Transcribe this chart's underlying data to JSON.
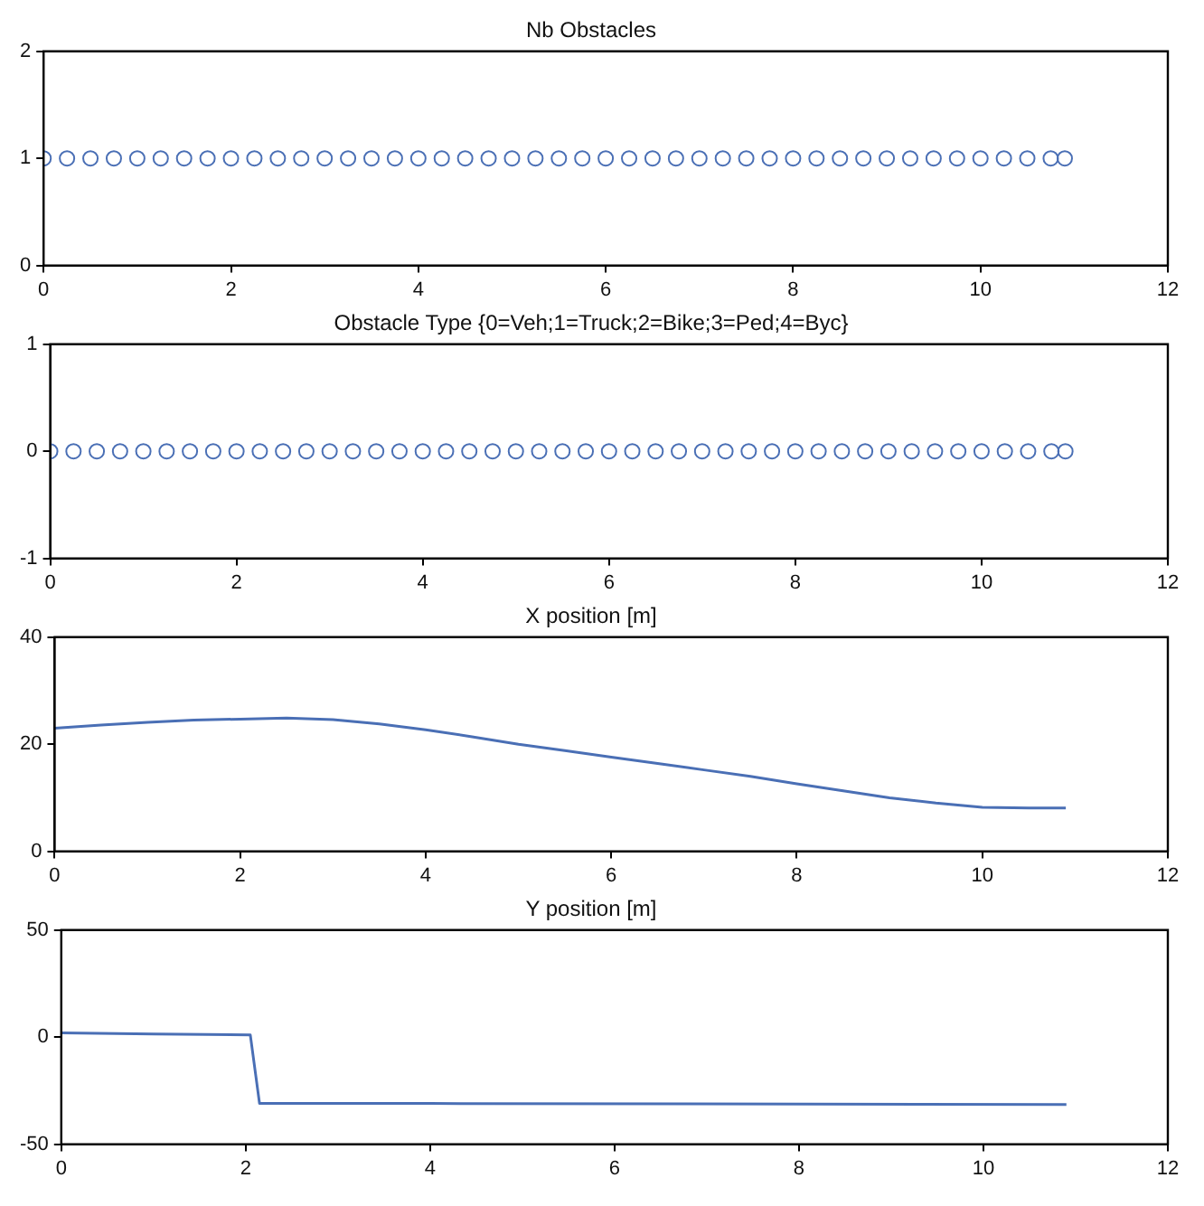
{
  "chart_data": [
    {
      "type": "scatter",
      "title": "Nb Obstacles",
      "marker": "circle",
      "grid": false,
      "legend": false,
      "xlim": [
        0,
        12
      ],
      "xticks": [
        0,
        2,
        4,
        6,
        8,
        10,
        12
      ],
      "ylim": [
        0,
        2
      ],
      "yticks": [
        0,
        1,
        2
      ],
      "series": [
        {
          "color": "#4a6fb5",
          "x": [
            0,
            0.25,
            0.5,
            0.75,
            1,
            1.25,
            1.5,
            1.75,
            2,
            2.25,
            2.5,
            2.75,
            3,
            3.25,
            3.5,
            3.75,
            4,
            4.25,
            4.5,
            4.75,
            5,
            5.25,
            5.5,
            5.75,
            6,
            6.25,
            6.5,
            6.75,
            7,
            7.25,
            7.5,
            7.75,
            8,
            8.25,
            8.5,
            8.75,
            9,
            9.25,
            9.5,
            9.75,
            10,
            10.25,
            10.5,
            10.75,
            10.9
          ],
          "values": [
            1,
            1,
            1,
            1,
            1,
            1,
            1,
            1,
            1,
            1,
            1,
            1,
            1,
            1,
            1,
            1,
            1,
            1,
            1,
            1,
            1,
            1,
            1,
            1,
            1,
            1,
            1,
            1,
            1,
            1,
            1,
            1,
            1,
            1,
            1,
            1,
            1,
            1,
            1,
            1,
            1,
            1,
            1,
            1,
            1
          ]
        }
      ]
    },
    {
      "type": "scatter",
      "title": "Obstacle Type {0=Veh;1=Truck;2=Bike;3=Ped;4=Byc}",
      "marker": "circle",
      "grid": false,
      "legend": false,
      "xlim": [
        0,
        12
      ],
      "xticks": [
        0,
        2,
        4,
        6,
        8,
        10,
        12
      ],
      "ylim": [
        -1,
        1
      ],
      "yticks": [
        -1,
        0,
        1
      ],
      "series": [
        {
          "color": "#4a6fb5",
          "x": [
            0,
            0.25,
            0.5,
            0.75,
            1,
            1.25,
            1.5,
            1.75,
            2,
            2.25,
            2.5,
            2.75,
            3,
            3.25,
            3.5,
            3.75,
            4,
            4.25,
            4.5,
            4.75,
            5,
            5.25,
            5.5,
            5.75,
            6,
            6.25,
            6.5,
            6.75,
            7,
            7.25,
            7.5,
            7.75,
            8,
            8.25,
            8.5,
            8.75,
            9,
            9.25,
            9.5,
            9.75,
            10,
            10.25,
            10.5,
            10.75,
            10.9
          ],
          "values": [
            0,
            0,
            0,
            0,
            0,
            0,
            0,
            0,
            0,
            0,
            0,
            0,
            0,
            0,
            0,
            0,
            0,
            0,
            0,
            0,
            0,
            0,
            0,
            0,
            0,
            0,
            0,
            0,
            0,
            0,
            0,
            0,
            0,
            0,
            0,
            0,
            0,
            0,
            0,
            0,
            0,
            0,
            0,
            0,
            0
          ]
        }
      ]
    },
    {
      "type": "line",
      "title": "X position [m]",
      "marker": "none",
      "grid": false,
      "legend": false,
      "xlim": [
        0,
        12
      ],
      "xticks": [
        0,
        2,
        4,
        6,
        8,
        10,
        12
      ],
      "ylim": [
        0,
        40
      ],
      "yticks": [
        0,
        20,
        40
      ],
      "series": [
        {
          "color": "#4a6fb5",
          "x": [
            0,
            0.5,
            1,
            1.5,
            2,
            2.5,
            3,
            3.5,
            4,
            4.5,
            5,
            5.5,
            6,
            6.5,
            7,
            7.5,
            8,
            8.5,
            9,
            9.5,
            10,
            10.5,
            10.9
          ],
          "values": [
            23,
            23.6,
            24.1,
            24.5,
            24.7,
            24.9,
            24.6,
            23.8,
            22.7,
            21.4,
            20,
            18.8,
            17.6,
            16.4,
            15.2,
            14,
            12.6,
            11.3,
            10,
            9,
            8.2,
            8.1,
            8.1
          ]
        }
      ]
    },
    {
      "type": "line",
      "title": "Y position [m]",
      "marker": "none",
      "grid": false,
      "legend": false,
      "xlim": [
        0,
        12
      ],
      "xticks": [
        0,
        2,
        4,
        6,
        8,
        10,
        12
      ],
      "ylim": [
        -50,
        50
      ],
      "yticks": [
        -50,
        0,
        50
      ],
      "series": [
        {
          "color": "#4a6fb5",
          "x": [
            0,
            1,
            2.05,
            2.15,
            4,
            10.9
          ],
          "values": [
            2,
            1.5,
            1,
            -31,
            -31,
            -31.5
          ]
        }
      ]
    }
  ]
}
